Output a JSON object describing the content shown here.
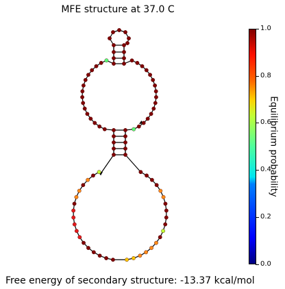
{
  "title": "MFE structure at 37.0 C",
  "footer": "Free energy of secondary structure: -13.37 kcal/mol",
  "colorbar": {
    "label": "Equilibrium probability",
    "ticks": [
      "0.0",
      "0.2",
      "0.4",
      "0.6",
      "0.8",
      "1.0"
    ],
    "range": [
      0,
      1
    ],
    "colormap": "jet"
  },
  "structure": {
    "hairpin_loop_size": 6,
    "stem1_basepairs": 4,
    "interior_loop": {
      "left": 16,
      "right": 16
    },
    "stem2_basepairs": 5,
    "exterior_loop": {
      "left": 18,
      "right": 18
    }
  },
  "colors": {
    "dark_red": "#800000",
    "red": "#e31a1c",
    "orange": "#ff8c1a",
    "yellow_orange": "#ffc800",
    "yellow_green": "#c0ff36",
    "green": "#5aff78",
    "backbone": "#000000"
  }
}
